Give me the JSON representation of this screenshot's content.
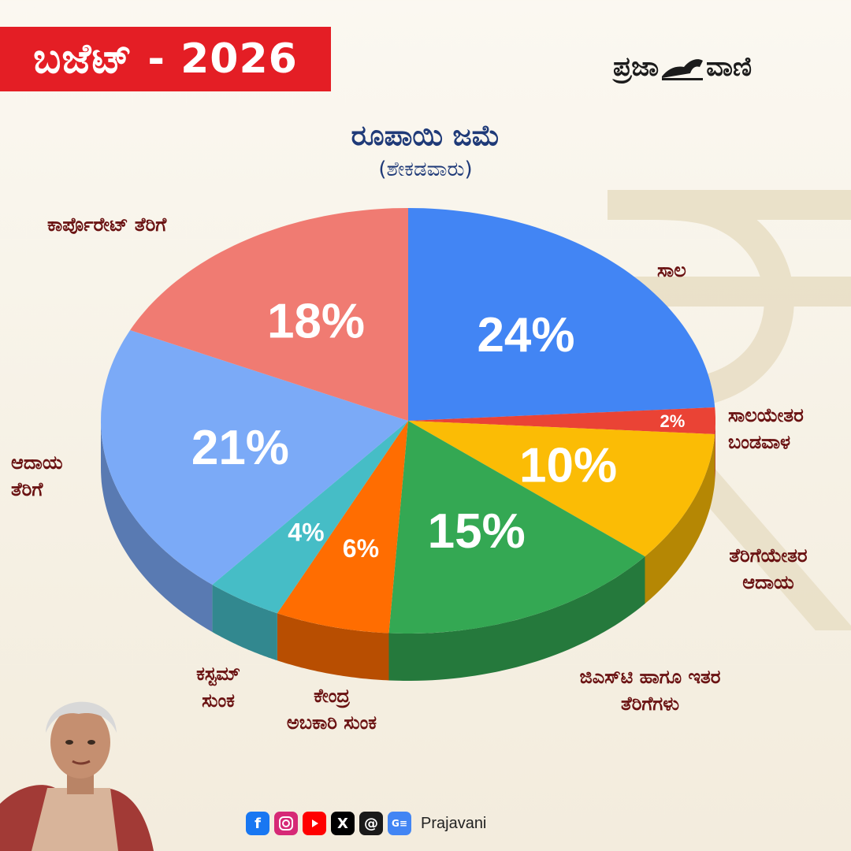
{
  "badge": {
    "text": "ಬಜೆಟ್ - 2026"
  },
  "brand": {
    "left": "ಪ್ರಜಾ",
    "right": "ವಾಣಿ"
  },
  "footer": {
    "name": "Prajavani",
    "icons": [
      "facebook-icon",
      "instagram-icon",
      "youtube-icon",
      "x-icon",
      "threads-icon",
      "google-news-icon"
    ]
  },
  "colors": {
    "badge": "#e41e25",
    "title": "#1f3a78",
    "label": "#6a1212"
  },
  "chart_data": {
    "type": "pie",
    "title": "ರೂಪಾಯಿ ಜಮೆ",
    "subtitle": "(ಶೇಕಡವಾರು)",
    "unit": "%",
    "slices": [
      {
        "label": "ಸಾಲ",
        "value": 24,
        "display": "24%",
        "color": "#4285f4"
      },
      {
        "label": "ಸಾಲಯೇತರ\nಬಂಡವಾಳ",
        "value": 2,
        "display": "2%",
        "color": "#ea4335"
      },
      {
        "label": "ತೆರಿಗೆಯೇತರ\nಆದಾಯ",
        "value": 10,
        "display": "10%",
        "color": "#fbbc05"
      },
      {
        "label": "ಜಿಎಸ್‌ಟಿ ಹಾಗೂ ಇತರ\nತೆರಿಗೆಗಳು",
        "value": 15,
        "display": "15%",
        "color": "#34a853"
      },
      {
        "label": "ಕೇಂದ್ರ\nಅಬಕಾರಿ ಸುಂಕ",
        "value": 6,
        "display": "6%",
        "color": "#ff6d01"
      },
      {
        "label": "ಕಸ್ಟಮ್\nಸುಂಕ",
        "value": 4,
        "display": "4%",
        "color": "#46bdc6"
      },
      {
        "label": "ಆದಾಯ\nತೆರಿಗೆ",
        "value": 21,
        "display": "21%",
        "color": "#7baaf7"
      },
      {
        "label": "ಕಾರ್ಪೊರೇಟ್ ತೆರಿಗೆ",
        "value": 18,
        "display": "18%",
        "color": "#f07b72"
      }
    ]
  }
}
